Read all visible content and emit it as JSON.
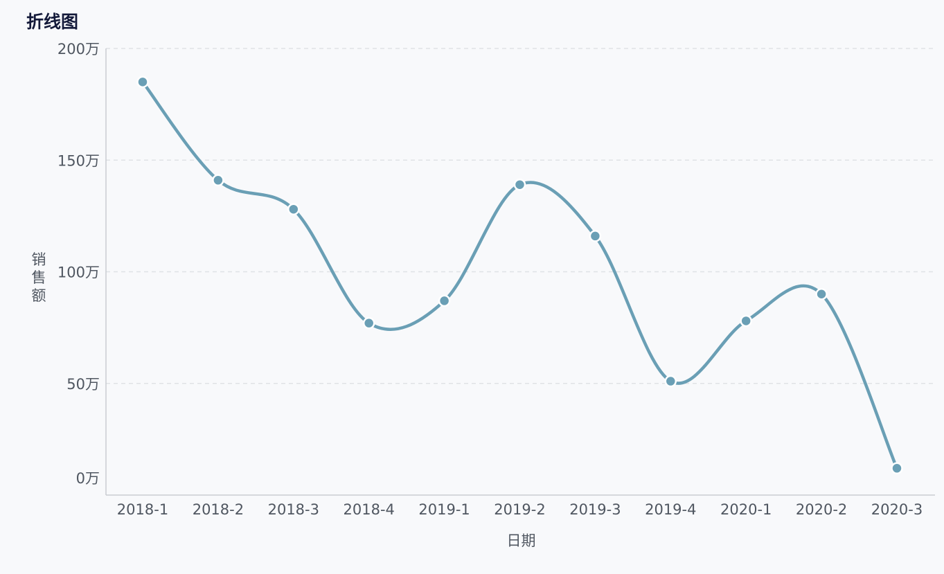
{
  "title": "折线图",
  "colors": {
    "line": "#6a9fb5",
    "grid": "#dfe2e6",
    "axis": "#c9ccd1",
    "text": "#4f5660",
    "title": "#141a3a"
  },
  "chart_data": {
    "type": "line",
    "smooth": true,
    "title": "折线图",
    "xlabel": "日期",
    "ylabel": "销售额",
    "categories": [
      "2018-1",
      "2018-2",
      "2018-3",
      "2018-4",
      "2019-1",
      "2019-2",
      "2019-3",
      "2019-4",
      "2020-1",
      "2020-2",
      "2020-3"
    ],
    "series": [
      {
        "values": [
          1850000,
          1410000,
          1280000,
          770000,
          870000,
          1390000,
          1160000,
          510000,
          780000,
          900000,
          120000
        ]
      }
    ],
    "ylim": [
      0,
      2000000
    ],
    "yticks": [
      0,
      500000,
      1000000,
      1500000,
      2000000
    ],
    "ytick_labels": [
      "0万",
      "50万",
      "100万",
      "150万",
      "200万"
    ],
    "grid": true,
    "legend": "none"
  }
}
